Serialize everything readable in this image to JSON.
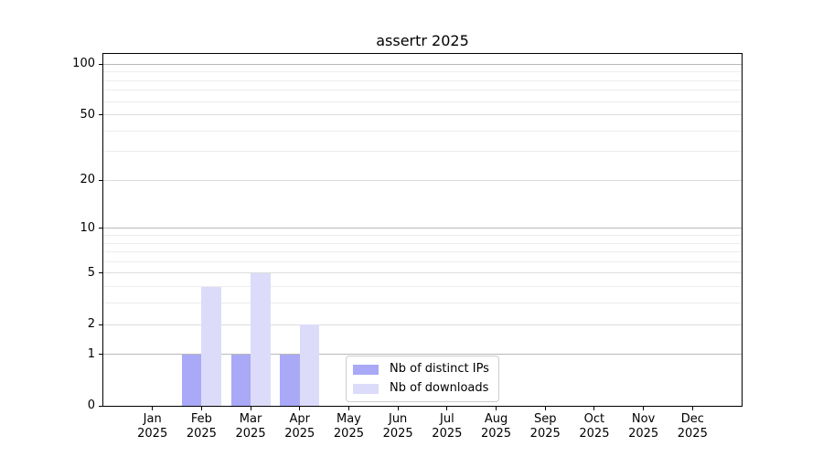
{
  "chart_data": {
    "type": "bar",
    "title": "assertr 2025",
    "year_label": "2025",
    "categories": [
      "Jan",
      "Feb",
      "Mar",
      "Apr",
      "May",
      "Jun",
      "Jul",
      "Aug",
      "Sep",
      "Oct",
      "Nov",
      "Dec"
    ],
    "series": [
      {
        "name": "Nb of distinct IPs",
        "color": "#a9a9f7",
        "values": [
          0,
          1,
          1,
          1,
          0,
          0,
          0,
          0,
          0,
          0,
          0,
          0
        ]
      },
      {
        "name": "Nb of downloads",
        "color": "#dcdcfa",
        "values": [
          0,
          4,
          5,
          2,
          0,
          0,
          0,
          0,
          0,
          0,
          0,
          0
        ]
      }
    ],
    "yscale": "log1p",
    "ylim": [
      0,
      115
    ],
    "y_ticks": [
      0,
      1,
      2,
      5,
      10,
      20,
      50,
      100
    ],
    "y_major_gridlines": [
      1,
      10,
      100
    ],
    "y_mid_gridlines": [
      2,
      5,
      20,
      50
    ],
    "y_minor_gridlines": [
      3,
      4,
      6,
      7,
      8,
      9,
      30,
      40,
      60,
      70,
      80,
      90
    ],
    "grid": "horizontal",
    "legend_position": "inside-bottom-center",
    "colors": {
      "axis": "#000000",
      "text": "#000000",
      "major_grid": "#b9b9b9",
      "mid_grid": "#dcdcdc",
      "minor_grid": "#ececec",
      "background": "#ffffff"
    }
  }
}
